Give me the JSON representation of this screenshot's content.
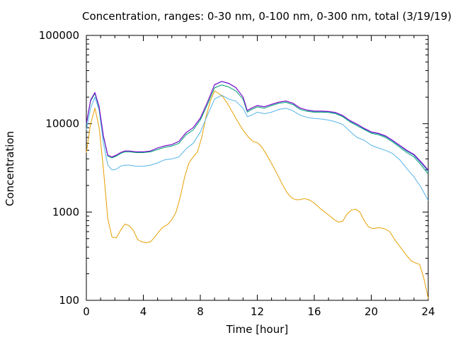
{
  "chart_data": {
    "type": "line",
    "title": "Concentration, ranges: 0-30 nm, 0-100 nm, 0-300 nm, total (3/19/19)",
    "xlabel": "Time [hour]",
    "ylabel": "Concentration",
    "xlim": [
      0,
      24
    ],
    "ylim": [
      100,
      100000
    ],
    "yscale": "log",
    "grid": false,
    "x_ticks": [
      "0",
      "4",
      "8",
      "12",
      "16",
      "20",
      "24"
    ],
    "y_ticks": [
      "100",
      "1000",
      "10000",
      "100000"
    ],
    "series": [
      {
        "color": "#e69f00",
        "x": [
          0,
          0.3,
          0.6,
          0.9,
          1.2,
          1.5,
          1.8,
          2.1,
          2.4,
          2.7,
          3.0,
          3.3,
          3.6,
          3.9,
          4.2,
          4.5,
          4.8,
          5.1,
          5.4,
          5.7,
          6.0,
          6.3,
          6.6,
          6.9,
          7.2,
          7.5,
          7.8,
          8.1,
          8.4,
          8.7,
          9.0,
          9.3,
          9.6,
          9.9,
          10.2,
          10.5,
          10.8,
          11.1,
          11.4,
          11.7,
          12.0,
          12.3,
          12.6,
          12.9,
          13.2,
          13.5,
          13.8,
          14.1,
          14.4,
          14.7,
          15.0,
          15.3,
          15.6,
          15.9,
          16.2,
          16.5,
          16.8,
          17.1,
          17.4,
          17.7,
          18.0,
          18.3,
          18.6,
          18.9,
          19.2,
          19.5,
          19.8,
          20.1,
          20.4,
          20.7,
          21.0,
          21.3,
          21.6,
          21.9,
          22.2,
          22.5,
          22.8,
          23.1,
          23.4,
          23.7,
          24.0
        ],
        "values": [
          4700,
          10000,
          15000,
          9000,
          3000,
          850,
          520,
          510,
          620,
          730,
          700,
          620,
          490,
          460,
          450,
          460,
          520,
          600,
          680,
          720,
          820,
          1000,
          1500,
          2500,
          3600,
          4200,
          4800,
          7000,
          12000,
          18000,
          23500,
          22000,
          20000,
          17000,
          14000,
          11500,
          9500,
          8000,
          7000,
          6300,
          6100,
          5500,
          4600,
          3800,
          3100,
          2500,
          2000,
          1650,
          1450,
          1380,
          1380,
          1420,
          1380,
          1300,
          1180,
          1070,
          980,
          900,
          820,
          770,
          790,
          950,
          1050,
          1080,
          1000,
          800,
          680,
          650,
          660,
          660,
          640,
          600,
          500,
          430,
          370,
          320,
          280,
          265,
          255,
          175,
          105
        ]
      },
      {
        "color": "#56b4e9",
        "x": [
          0,
          0.3,
          0.6,
          0.9,
          1.2,
          1.5,
          1.8,
          2.1,
          2.4,
          2.7,
          3.0,
          3.5,
          4.0,
          4.5,
          5.0,
          5.5,
          6.0,
          6.5,
          7.0,
          7.5,
          8.0,
          8.5,
          9.0,
          9.5,
          10.0,
          10.5,
          11.0,
          11.3,
          11.6,
          12.0,
          12.5,
          13.0,
          13.5,
          14.0,
          14.5,
          15.0,
          15.5,
          16.0,
          16.5,
          17.0,
          17.5,
          18.0,
          18.5,
          19.0,
          19.5,
          20.0,
          20.5,
          21.0,
          21.5,
          22.0,
          22.5,
          23.0,
          23.5,
          24.0
        ],
        "values": [
          8500,
          15000,
          20000,
          14000,
          6000,
          3400,
          3000,
          3050,
          3300,
          3400,
          3400,
          3300,
          3300,
          3400,
          3600,
          3900,
          4000,
          4200,
          5200,
          6000,
          8000,
          12500,
          19000,
          21000,
          19000,
          18000,
          15000,
          12000,
          12500,
          13500,
          13000,
          13500,
          14500,
          15000,
          14000,
          12500,
          11800,
          11500,
          11300,
          11000,
          10500,
          9800,
          8200,
          7000,
          6500,
          5700,
          5300,
          5000,
          4600,
          3900,
          3100,
          2500,
          1900,
          1350
        ]
      },
      {
        "color": "#009e73",
        "x": [
          0,
          0.3,
          0.6,
          0.9,
          1.2,
          1.5,
          1.8,
          2.1,
          2.4,
          2.7,
          3.0,
          3.5,
          4.0,
          4.5,
          5.0,
          5.5,
          6.0,
          6.5,
          7.0,
          7.5,
          8.0,
          8.5,
          9.0,
          9.5,
          10.0,
          10.5,
          11.0,
          11.3,
          11.6,
          12.0,
          12.5,
          13.0,
          13.5,
          14.0,
          14.5,
          15.0,
          15.5,
          16.0,
          16.5,
          17.0,
          17.5,
          18.0,
          18.5,
          19.0,
          19.5,
          20.0,
          20.5,
          21.0,
          21.5,
          22.0,
          22.5,
          23.0,
          23.5,
          24.0
        ],
        "values": [
          9800,
          18000,
          22000,
          15000,
          7000,
          4300,
          4100,
          4300,
          4600,
          4800,
          4800,
          4700,
          4700,
          4800,
          5100,
          5400,
          5600,
          6000,
          7500,
          8500,
          11000,
          16500,
          25500,
          27500,
          26000,
          23500,
          19000,
          13500,
          14500,
          15500,
          15000,
          16000,
          17000,
          17500,
          16500,
          14500,
          13800,
          13500,
          13500,
          13400,
          13000,
          12000,
          10500,
          9500,
          8600,
          7800,
          7500,
          7000,
          6200,
          5400,
          4700,
          4200,
          3400,
          2700
        ]
      },
      {
        "color": "#0072b2",
        "x": [
          0,
          0.3,
          0.6,
          0.9,
          1.2,
          1.5,
          1.8,
          2.1,
          2.4,
          2.7,
          3.0,
          3.5,
          4.0,
          4.5,
          5.0,
          5.5,
          6.0,
          6.5,
          7.0,
          7.5,
          8.0,
          8.5,
          9.0,
          9.5,
          10.0,
          10.5,
          11.0,
          11.3,
          11.6,
          12.0,
          12.5,
          13.0,
          13.5,
          14.0,
          14.5,
          15.0,
          15.5,
          16.0,
          16.5,
          17.0,
          17.5,
          18.0,
          18.5,
          19.0,
          19.5,
          20.0,
          20.5,
          21.0,
          21.5,
          22.0,
          22.5,
          23.0,
          23.5,
          24.0
        ],
        "values": [
          10000,
          18500,
          22500,
          15500,
          7200,
          4400,
          4200,
          4400,
          4700,
          4900,
          4900,
          4800,
          4800,
          4900,
          5300,
          5600,
          5800,
          6300,
          7900,
          9000,
          11500,
          17500,
          27500,
          30000,
          28500,
          25500,
          20000,
          14000,
          15000,
          16000,
          15500,
          16500,
          17500,
          18000,
          17000,
          15000,
          14200,
          13800,
          13800,
          13700,
          13300,
          12300,
          10800,
          9800,
          8800,
          8000,
          7700,
          7200,
          6400,
          5600,
          4900,
          4400,
          3600,
          2900
        ]
      },
      {
        "color": "#9400d3",
        "x": [
          0,
          0.3,
          0.6,
          0.9,
          1.2,
          1.5,
          1.8,
          2.1,
          2.4,
          2.7,
          3.0,
          3.5,
          4.0,
          4.5,
          5.0,
          5.5,
          6.0,
          6.5,
          7.0,
          7.5,
          8.0,
          8.5,
          9.0,
          9.5,
          10.0,
          10.5,
          11.0,
          11.3,
          11.6,
          12.0,
          12.5,
          13.0,
          13.5,
          14.0,
          14.5,
          15.0,
          15.5,
          16.0,
          16.5,
          17.0,
          17.5,
          18.0,
          18.5,
          19.0,
          19.5,
          20.0,
          20.5,
          21.0,
          21.5,
          22.0,
          22.5,
          23.0,
          23.5,
          24.0
        ],
        "values": [
          10100,
          18600,
          22600,
          15600,
          7250,
          4420,
          4220,
          4420,
          4720,
          4920,
          4920,
          4820,
          4820,
          4920,
          5320,
          5620,
          5820,
          6330,
          7950,
          9050,
          11600,
          17600,
          27700,
          30200,
          28700,
          25700,
          20100,
          14100,
          15100,
          16100,
          15600,
          16600,
          17600,
          18100,
          17100,
          15100,
          14300,
          13900,
          13900,
          13800,
          13400,
          12400,
          10900,
          9900,
          8900,
          8100,
          7800,
          7300,
          6500,
          5700,
          5000,
          4500,
          3700,
          3000
        ]
      }
    ]
  }
}
